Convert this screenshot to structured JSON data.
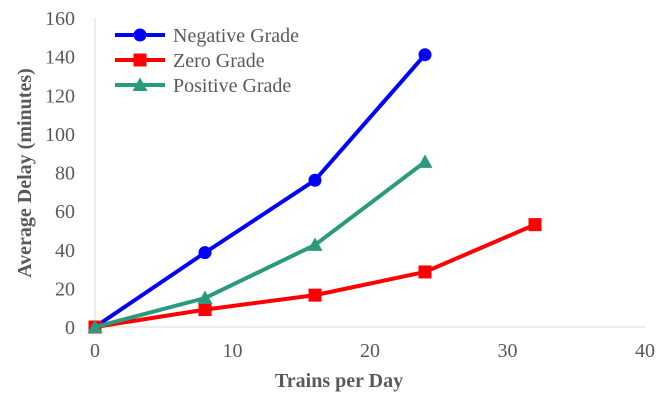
{
  "chart_data": {
    "type": "line",
    "title": "",
    "xlabel": "Trains per Day",
    "ylabel": "Average Delay (minutes)",
    "xlim": [
      0,
      40
    ],
    "ylim": [
      0,
      160
    ],
    "xticks": [
      0,
      10,
      20,
      30,
      40
    ],
    "yticks": [
      0,
      20,
      40,
      60,
      80,
      100,
      120,
      140,
      160
    ],
    "xtick_labels": [
      "0",
      "10",
      "20",
      "30",
      "40"
    ],
    "ytick_labels": [
      "0",
      "20",
      "40",
      "60",
      "80",
      "100",
      "120",
      "140",
      "160"
    ],
    "grid": false,
    "legend_position": "top-left",
    "series": [
      {
        "name": "Negative Grade",
        "color": "#0000ff",
        "marker": "circle",
        "x": [
          0,
          8,
          16,
          24
        ],
        "y": [
          0,
          38.5,
          76,
          141
        ]
      },
      {
        "name": "Zero Grade",
        "color": "#ff0000",
        "marker": "square",
        "x": [
          0,
          8,
          16,
          24,
          32
        ],
        "y": [
          0,
          9,
          16.5,
          28.5,
          53
        ]
      },
      {
        "name": "Positive Grade",
        "color": "#2a9a7c",
        "marker": "triangle",
        "x": [
          0,
          8,
          16,
          24
        ],
        "y": [
          0,
          15,
          42.5,
          85.5
        ]
      }
    ]
  }
}
